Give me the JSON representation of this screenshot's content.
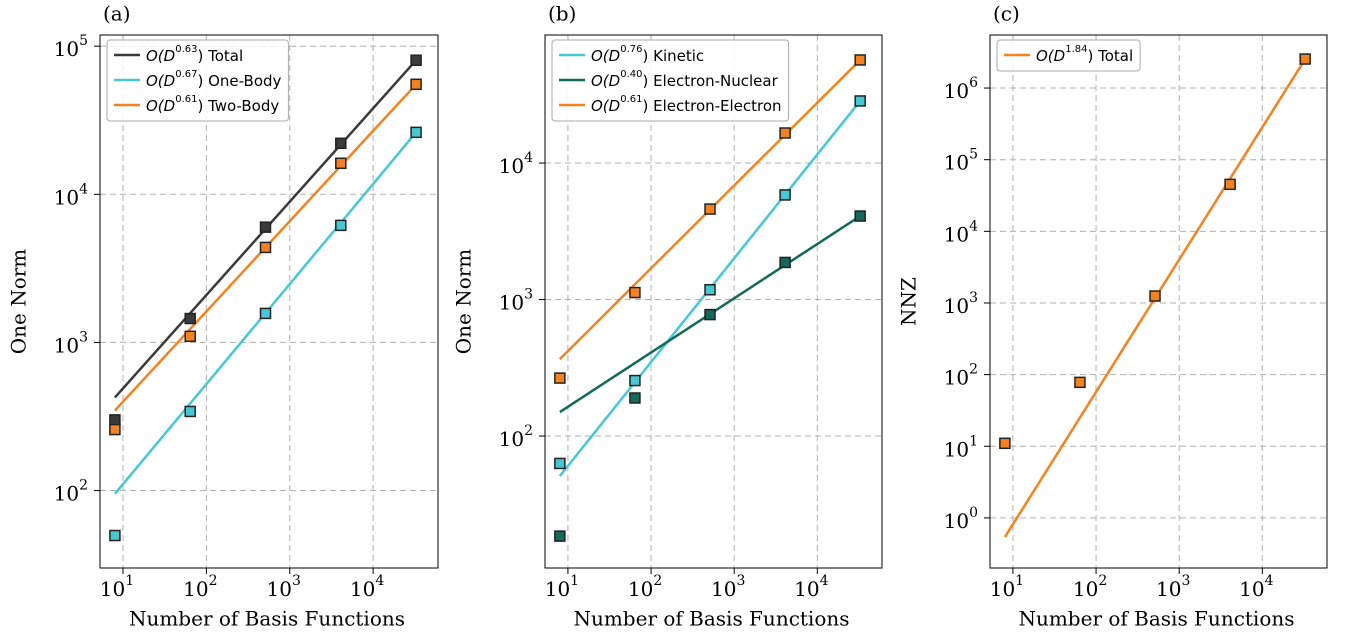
{
  "chart_data": [
    {
      "type": "line",
      "panel_label": "(a)",
      "xlabel": "Number of Basis Functions",
      "ylabel": "One Norm",
      "xscale": "log",
      "yscale": "log",
      "grid": true,
      "legend": "upper left",
      "x": [
        8,
        64,
        512,
        4096,
        32768
      ],
      "fit_x": [
        8,
        32768
      ],
      "xlim": [
        5.3,
        60000
      ],
      "ylim": [
        30,
        119000
      ],
      "xticks": [
        {
          "value": 10,
          "label": {
            "base": "10",
            "exponent": "1"
          }
        },
        {
          "value": 100,
          "label": {
            "base": "10",
            "exponent": "2"
          }
        },
        {
          "value": 1000,
          "label": {
            "base": "10",
            "exponent": "3"
          }
        },
        {
          "value": 10000,
          "label": {
            "base": "10",
            "exponent": "4"
          }
        }
      ],
      "yticks": [
        {
          "value": 100,
          "label": {
            "base": "10",
            "exponent": "2"
          }
        },
        {
          "value": 1000,
          "label": {
            "base": "10",
            "exponent": "3"
          }
        },
        {
          "value": 10000,
          "label": {
            "base": "10",
            "exponent": "4"
          }
        },
        {
          "value": 100000,
          "label": {
            "base": "10",
            "exponent": "5"
          }
        }
      ],
      "series": [
        {
          "name_parts": [
            "O(D",
            "0.63",
            ") Total"
          ],
          "color": "#3a3a3a",
          "values": [
            300,
            1450,
            6000,
            22100,
            80400
          ],
          "fit": [
            425,
            80400
          ]
        },
        {
          "name_parts": [
            "O(D",
            "0.67",
            ") One-Body"
          ],
          "color": "#45c8d3",
          "values": [
            49.7,
            342,
            1570,
            6170,
            26200
          ],
          "fit": [
            95,
            26200
          ]
        },
        {
          "name_parts": [
            "O(D",
            "0.61",
            ") Two-Body"
          ],
          "color": "#f5821f",
          "values": [
            258,
            1100,
            4380,
            16200,
            55300
          ],
          "fit": [
            347,
            55300
          ]
        }
      ]
    },
    {
      "type": "line",
      "panel_label": "(b)",
      "xlabel": "Number of Basis Functions",
      "ylabel": "One Norm",
      "xscale": "log",
      "yscale": "log",
      "grid": true,
      "legend": "upper left",
      "x": [
        8,
        64,
        512,
        4096,
        32768
      ],
      "fit_x": [
        8,
        32768
      ],
      "xlim": [
        5.3,
        60000
      ],
      "ylim": [
        10.8,
        86700
      ],
      "xticks": [
        {
          "value": 10,
          "label": {
            "base": "10",
            "exponent": "1"
          }
        },
        {
          "value": 100,
          "label": {
            "base": "10",
            "exponent": "2"
          }
        },
        {
          "value": 1000,
          "label": {
            "base": "10",
            "exponent": "3"
          }
        },
        {
          "value": 10000,
          "label": {
            "base": "10",
            "exponent": "4"
          }
        }
      ],
      "yticks": [
        {
          "value": 100,
          "label": {
            "base": "10",
            "exponent": "2"
          }
        },
        {
          "value": 1000,
          "label": {
            "base": "10",
            "exponent": "3"
          }
        },
        {
          "value": 10000,
          "label": {
            "base": "10",
            "exponent": "4"
          }
        }
      ],
      "series": [
        {
          "name_parts": [
            "O(D",
            "0.76",
            ") Kinetic"
          ],
          "color": "#45c8d3",
          "values": [
            63,
            255,
            1180,
            5840,
            28500
          ],
          "fit": [
            51,
            28500
          ]
        },
        {
          "name_parts": [
            "O(D",
            "0.40",
            ") Electron-Nuclear"
          ],
          "color": "#13695a",
          "values": [
            18.5,
            190,
            776,
            1870,
            4090
          ],
          "fit": [
            150,
            4090
          ]
        },
        {
          "name_parts": [
            "O(D",
            "0.61",
            ") Electron-Electron"
          ],
          "color": "#f5821f",
          "values": [
            266,
            1125,
            4600,
            16600,
            56900
          ],
          "fit": [
            366,
            56900
          ]
        }
      ]
    },
    {
      "type": "line",
      "panel_label": "(c)",
      "xlabel": "Number of Basis Functions",
      "ylabel": "NNZ",
      "xscale": "log",
      "yscale": "log",
      "grid": true,
      "legend": "upper left",
      "x": [
        8,
        64,
        512,
        4096,
        32768
      ],
      "fit_x": [
        8,
        32768
      ],
      "xlim": [
        5.3,
        60000
      ],
      "ylim": [
        0.2,
        5500000
      ],
      "xticks": [
        {
          "value": 10,
          "label": {
            "base": "10",
            "exponent": "1"
          }
        },
        {
          "value": 100,
          "label": {
            "base": "10",
            "exponent": "2"
          }
        },
        {
          "value": 1000,
          "label": {
            "base": "10",
            "exponent": "3"
          }
        },
        {
          "value": 10000,
          "label": {
            "base": "10",
            "exponent": "4"
          }
        }
      ],
      "yticks": [
        {
          "value": 1,
          "label": {
            "base": "10",
            "exponent": "0"
          }
        },
        {
          "value": 10,
          "label": {
            "base": "10",
            "exponent": "1"
          }
        },
        {
          "value": 100,
          "label": {
            "base": "10",
            "exponent": "2"
          }
        },
        {
          "value": 1000,
          "label": {
            "base": "10",
            "exponent": "3"
          }
        },
        {
          "value": 10000,
          "label": {
            "base": "10",
            "exponent": "4"
          }
        },
        {
          "value": 100000,
          "label": {
            "base": "10",
            "exponent": "5"
          }
        },
        {
          "value": 1000000,
          "label": {
            "base": "10",
            "exponent": "6"
          }
        }
      ],
      "series": [
        {
          "name_parts": [
            "O(D",
            "1.84",
            ") Total"
          ],
          "color": "#f5821f",
          "values": [
            11,
            78,
            1250,
            45300,
            2540000
          ],
          "fit": [
            0.54,
            2540000
          ]
        }
      ]
    }
  ]
}
